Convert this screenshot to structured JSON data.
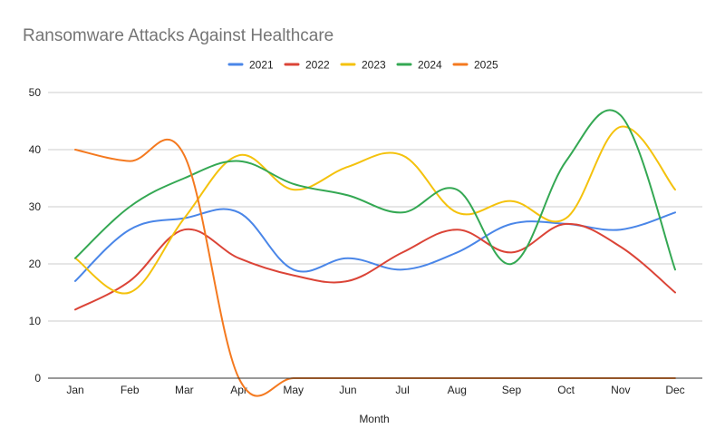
{
  "chart_data": {
    "type": "line",
    "title": "Ransomware Attacks Against Healthcare",
    "xlabel": "Month",
    "ylabel": "",
    "categories": [
      "Jan",
      "Feb",
      "Mar",
      "Apr",
      "May",
      "Jun",
      "Jul",
      "Aug",
      "Sep",
      "Oct",
      "Nov",
      "Dec"
    ],
    "ylim": [
      0,
      50
    ],
    "yticks": [
      0,
      10,
      20,
      30,
      40,
      50
    ],
    "grid": true,
    "legend_position": "top",
    "smooth": true,
    "series": [
      {
        "name": "2021",
        "color": "#4a86e8",
        "values": [
          17,
          26,
          28,
          29,
          19,
          21,
          19,
          22,
          27,
          27,
          26,
          29
        ]
      },
      {
        "name": "2022",
        "color": "#db4437",
        "values": [
          12,
          17,
          26,
          21,
          18,
          17,
          22,
          26,
          22,
          27,
          23,
          15
        ]
      },
      {
        "name": "2023",
        "color": "#f4c20d",
        "values": [
          21,
          15,
          28,
          39,
          33,
          37,
          39,
          29,
          31,
          28,
          44,
          33
        ]
      },
      {
        "name": "2024",
        "color": "#34a853",
        "values": [
          21,
          30,
          35,
          38,
          34,
          32,
          29,
          33,
          20,
          38,
          46,
          19
        ]
      },
      {
        "name": "2025",
        "color": "#f4791f",
        "values": [
          40,
          38,
          39,
          0,
          0,
          0,
          0,
          0,
          0,
          0,
          0,
          0
        ]
      }
    ]
  }
}
